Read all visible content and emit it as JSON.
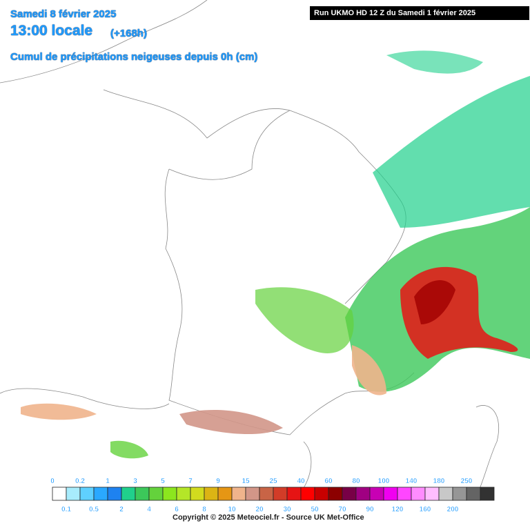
{
  "header": {
    "date": "Samedi 8 février 2025",
    "time": "13:00 locale",
    "lead": "(+168h)",
    "subtitle": "Cumul de précipitations neigeuses depuis 0h (cm)",
    "run": "Run UKMO HD 12 Z du Samedi 1 février 2025"
  },
  "legend": {
    "top_labels": [
      "0",
      "0.2",
      "1",
      "3",
      "5",
      "7",
      "9",
      "15",
      "25",
      "40",
      "60",
      "80",
      "100",
      "140",
      "180",
      "250"
    ],
    "bottom_labels": [
      "0.1",
      "0.5",
      "2",
      "4",
      "6",
      "8",
      "10",
      "20",
      "30",
      "50",
      "70",
      "90",
      "120",
      "160",
      "200"
    ],
    "colors": [
      "#ffffff",
      "#a8ecfc",
      "#5fd0ff",
      "#2aa8ff",
      "#1e82f0",
      "#20d08c",
      "#3cc85a",
      "#64d23c",
      "#8ce61e",
      "#b4e628",
      "#d2dc1e",
      "#dcb414",
      "#e69614",
      "#f0b48c",
      "#d29688",
      "#c86446",
      "#d23c28",
      "#e61414",
      "#ff0000",
      "#c80000",
      "#8c0000",
      "#780046",
      "#a00082",
      "#c800b4",
      "#f000f0",
      "#ff46ff",
      "#ff8cff",
      "#ffbeff",
      "#c8c8c8",
      "#969696",
      "#646464",
      "#323232"
    ]
  },
  "copyright": "Copyright © 2025 Meteociel.fr - Source UK Met-Office"
}
